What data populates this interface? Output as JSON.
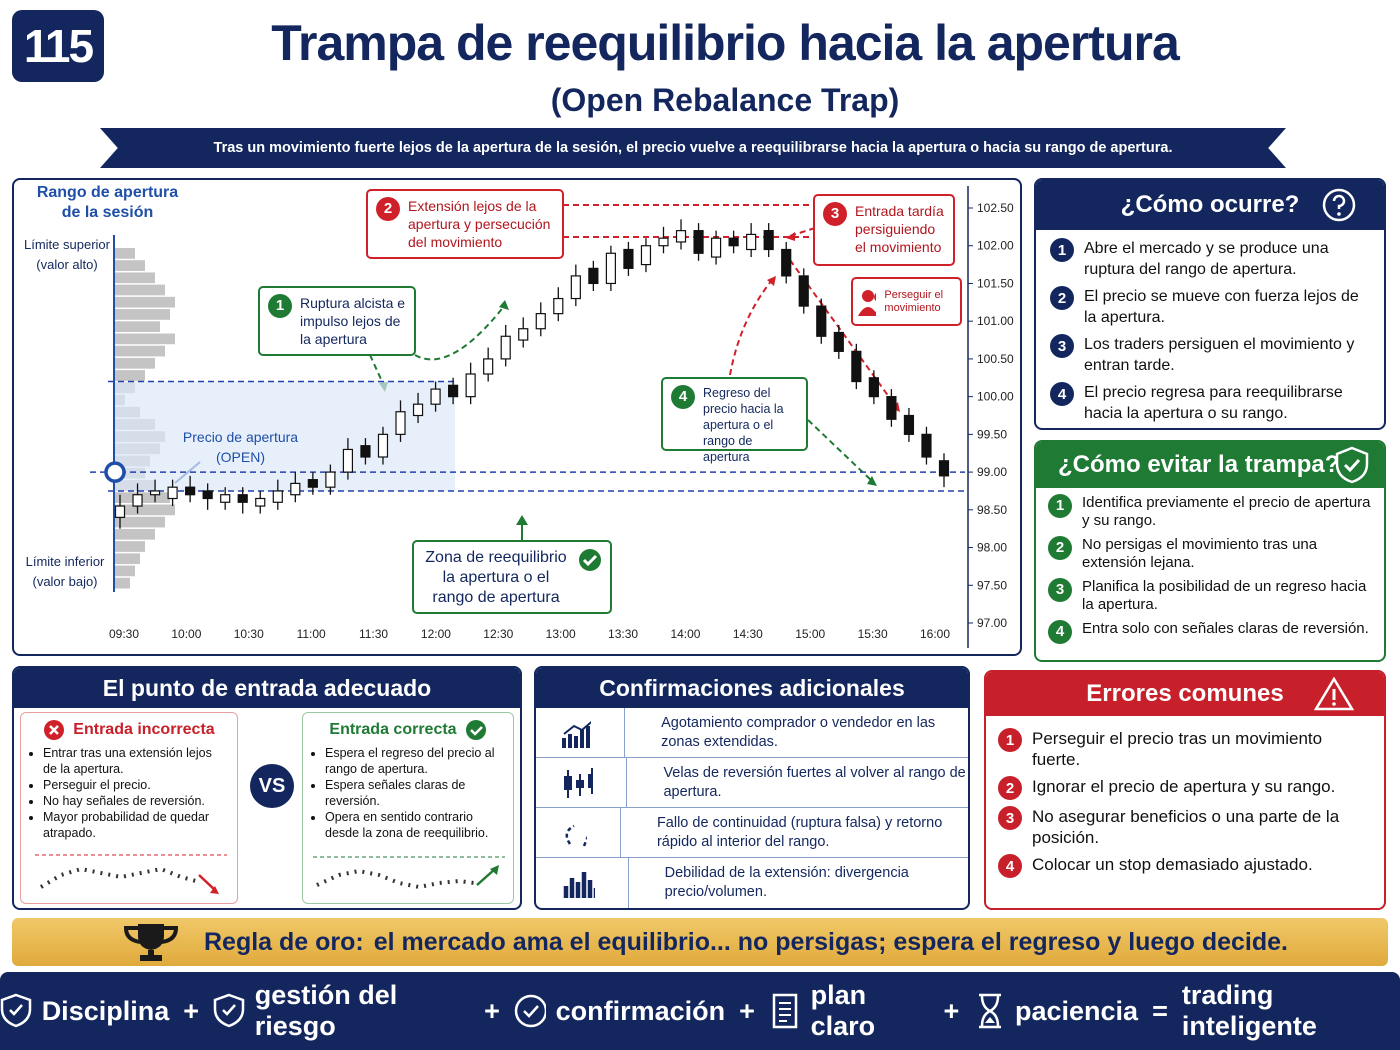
{
  "header": {
    "number": "115",
    "title": "Trampa de reequilibrio hacia la apertura",
    "subtitle": "(Open Rebalance Trap)",
    "banner": "Tras un movimiento fuerte lejos de la apertura de la sesión, el precio vuelve a reequilibrarse hacia la apertura o hacia su rango de apertura."
  },
  "chart_data": {
    "type": "candlestick",
    "range_title": [
      "Rango de apertura",
      "de la sesión"
    ],
    "upper_label": [
      "Límite superior",
      "(valor alto)"
    ],
    "lower_label": [
      "Límite inferior",
      "(valor bajo)"
    ],
    "open_label": [
      "Precio de apertura",
      "(OPEN)"
    ],
    "callouts": [
      {
        "number": "1",
        "text": "Ruptura alcista e impulso lejos de la apertura"
      },
      {
        "number": "2",
        "text": "Extensión lejos de la apertura y persecución del movimiento"
      },
      {
        "number": "3",
        "text": "Entrada tardía persiguiendo el movimiento"
      },
      {
        "number": "4",
        "text": "Regreso del precio hacia la apertura o el rango de apertura"
      }
    ],
    "chase_badge": "Perseguir el movimiento",
    "zone_label": "Zona de reequilibrio la apertura o el rango de apertura",
    "time_labels": [
      "09:30",
      "10:00",
      "10:30",
      "11:00",
      "11:30",
      "12:00",
      "12:30",
      "13:00",
      "13:30",
      "14:00",
      "14:30",
      "15:00",
      "15:30",
      "16:00"
    ],
    "ylim": [
      97,
      102.5
    ],
    "yticks": [
      {
        "value": 97,
        "label": "97.00"
      },
      {
        "value": 97.5,
        "label": "97.50"
      },
      {
        "value": 98,
        "label": "98.00"
      },
      {
        "value": 98.5,
        "label": "98.50"
      },
      {
        "value": 99,
        "label": "99.00"
      },
      {
        "value": 99.5,
        "label": "99.50"
      },
      {
        "value": 100,
        "label": "100.00"
      },
      {
        "value": 100.5,
        "label": "100.50"
      },
      {
        "value": 101,
        "label": "101.00"
      },
      {
        "value": 101.5,
        "label": "101.50"
      },
      {
        "value": 102,
        "label": "102.00"
      },
      {
        "value": 102.5,
        "label": "102.50"
      }
    ],
    "open": [
      98.4,
      98.55,
      98.7,
      98.65,
      98.8,
      98.75,
      98.6,
      98.7,
      98.55,
      98.6,
      98.7,
      98.9,
      98.8,
      99.0,
      99.35,
      99.2,
      99.5,
      99.75,
      99.9,
      100.15,
      100.0,
      100.3,
      100.5,
      100.75,
      100.9,
      101.1,
      101.3,
      101.7,
      101.5,
      101.95,
      101.75,
      102.0,
      102.05,
      102.2,
      101.85,
      102.1,
      101.95,
      102.2,
      101.95,
      101.6,
      101.2,
      100.85,
      100.6,
      100.25,
      100.0,
      99.75,
      99.5,
      99.15
    ],
    "high": [
      98.7,
      98.85,
      98.9,
      98.9,
      98.95,
      98.85,
      98.8,
      98.8,
      98.75,
      98.9,
      99.0,
      99.0,
      99.1,
      99.45,
      99.45,
      99.6,
      99.95,
      100.05,
      100.2,
      100.25,
      100.45,
      100.65,
      100.95,
      101.05,
      101.25,
      101.45,
      101.75,
      101.8,
      102.0,
      102.05,
      102.1,
      102.25,
      102.35,
      102.3,
      102.2,
      102.2,
      102.3,
      102.3,
      102.05,
      101.7,
      101.3,
      100.95,
      100.7,
      100.35,
      100.1,
      99.85,
      99.6,
      99.25
    ],
    "low": [
      98.25,
      98.45,
      98.6,
      98.55,
      98.6,
      98.5,
      98.5,
      98.45,
      98.45,
      98.5,
      98.6,
      98.7,
      98.7,
      98.9,
      99.1,
      99.1,
      99.4,
      99.65,
      99.8,
      99.9,
      99.9,
      100.2,
      100.4,
      100.65,
      100.8,
      101.0,
      101.2,
      101.4,
      101.4,
      101.6,
      101.65,
      101.9,
      101.95,
      101.8,
      101.75,
      101.9,
      101.85,
      101.85,
      101.5,
      101.1,
      100.7,
      100.5,
      100.1,
      99.9,
      99.6,
      99.4,
      99.1,
      98.8
    ],
    "close": [
      98.55,
      98.7,
      98.75,
      98.8,
      98.7,
      98.65,
      98.7,
      98.6,
      98.65,
      98.75,
      98.85,
      98.8,
      99.0,
      99.3,
      99.2,
      99.5,
      99.8,
      99.9,
      100.1,
      100.0,
      100.3,
      100.5,
      100.8,
      100.9,
      101.1,
      101.3,
      101.6,
      101.5,
      101.9,
      101.7,
      102.0,
      102.1,
      102.2,
      101.9,
      102.1,
      102.0,
      102.15,
      101.95,
      101.6,
      101.2,
      100.8,
      100.6,
      100.2,
      100.0,
      99.7,
      99.5,
      99.2,
      98.95
    ],
    "levels": {
      "range_high": 100.2,
      "open_price": 99.0,
      "range_low": 98.75
    },
    "profile": [
      20,
      30,
      40,
      50,
      60,
      55,
      45,
      60,
      50,
      40,
      30,
      20,
      10,
      25,
      40,
      50,
      45,
      35,
      30,
      40,
      55,
      60,
      50,
      40,
      30,
      25,
      20,
      15
    ]
  },
  "how": {
    "title": "¿Cómo ocurre?",
    "items": [
      {
        "number": "1",
        "text": "Abre el mercado y se produce una ruptura del rango de apertura."
      },
      {
        "number": "2",
        "text": "El precio se mueve con fuerza lejos de la apertura."
      },
      {
        "number": "3",
        "text": "Los traders persiguen el movimiento y entran tarde."
      },
      {
        "number": "4",
        "text": "El precio regresa para reequilibrarse hacia la apertura o su rango."
      }
    ]
  },
  "avoid": {
    "title": "¿Cómo evitar la trampa?",
    "items": [
      {
        "number": "1",
        "text": "Identifica previamente el precio de apertura y su rango."
      },
      {
        "number": "2",
        "text": "No persigas el movimiento tras una extensión lejana."
      },
      {
        "number": "3",
        "text": "Planifica la posibilidad de un regreso hacia la apertura."
      },
      {
        "number": "4",
        "text": "Entra solo con señales claras de reversión."
      }
    ]
  },
  "entry": {
    "title": "El punto de entrada adecuado",
    "incorrect": {
      "title": "Entrada incorrecta",
      "bullets": [
        "Entrar tras una extensión lejos de la apertura.",
        "Perseguir el precio.",
        "No hay señales de reversión.",
        "Mayor probabilidad de quedar atrapado."
      ]
    },
    "vs": "VS",
    "correct": {
      "title": "Entrada correcta",
      "bullets": [
        "Espera el regreso del precio al rango de apertura.",
        "Espera señales claras de reversión.",
        "Opera en sentido contrario desde la zona de reequilibrio."
      ]
    }
  },
  "confirmations": {
    "title": "Confirmaciones adicionales",
    "items": [
      "Agotamiento comprador o vendedor en las zonas extendidas.",
      "Velas de reversión fuertes al volver al rango de apertura.",
      "Fallo de continuidad (ruptura falsa) y retorno rápido al interior del rango.",
      "Debilidad de la extensión: divergencia precio/volumen."
    ]
  },
  "errors": {
    "title": "Errores comunes",
    "items": [
      {
        "number": "1",
        "text": "Perseguir el precio tras un movimiento fuerte."
      },
      {
        "number": "2",
        "text": "Ignorar el precio de apertura y su rango."
      },
      {
        "number": "3",
        "text": "No asegurar beneficios o una parte de la posición."
      },
      {
        "number": "4",
        "text": "Colocar un stop demasiado ajustado."
      }
    ]
  },
  "rule": {
    "label": "Regla de oro:",
    "text": "el mercado ama el equilibrio... no persigas; espera el regreso y luego decide."
  },
  "footer": {
    "items": [
      "Disciplina",
      "gestión del riesgo",
      "confirmación",
      "plan claro",
      "paciencia",
      "trading inteligente"
    ],
    "operators": [
      "+",
      "+",
      "+",
      "+",
      "="
    ]
  }
}
